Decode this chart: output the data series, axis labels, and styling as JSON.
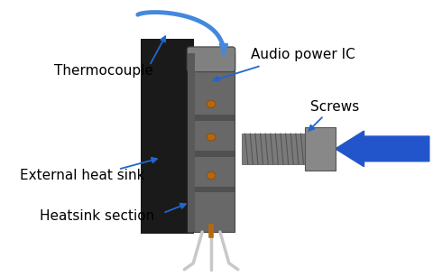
{
  "bg_color": "#ffffff",
  "heatsink_color": "#1a1a1a",
  "ic_body_color": "#686868",
  "ic_dark_color": "#505050",
  "ic_edge_color": "#444444",
  "ic_top_color": "#808080",
  "screw_color": "#7a7a7a",
  "screw_thread_color": "#555555",
  "screw_head_color": "#888888",
  "big_arrow_color": "#2255cc",
  "wire_color": "#4488dd",
  "lead_color": "#c8c8c8",
  "orange_dot_color": "#b8680a",
  "arrow_color": "#2266cc",
  "label_thermocouple": "Thermocouple",
  "label_audio_ic": "Audio power IC",
  "label_screws": "Screws",
  "label_ext_heatsink": "External heat sink",
  "label_heatsink_section": "Heatsink section",
  "label_fontsize": 11,
  "label_color": "#000000"
}
